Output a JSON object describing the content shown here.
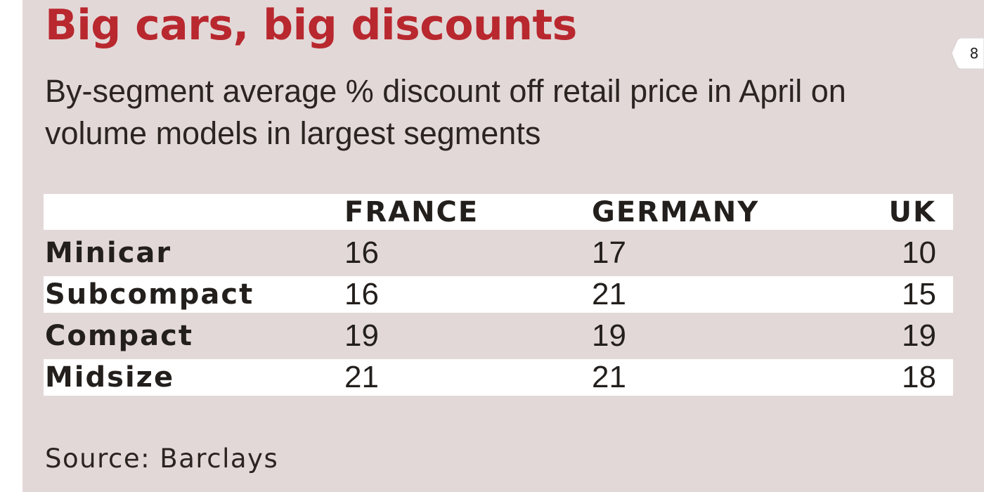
{
  "title": "Big cars, big discounts",
  "subtitle": "By-segment average % discount off retail price in April on volume models in largest segments",
  "source": "Source: Barclays",
  "page_number": "8",
  "colors": {
    "title": "#b8282e",
    "background": "#e3d8d8",
    "row_highlight": "#ffffff",
    "text": "#231f1c"
  },
  "chart_data": {
    "type": "table",
    "title": "Big cars, big discounts",
    "subtitle": "By-segment average % discount off retail price in April on volume models in largest segments",
    "columns": [
      "FRANCE",
      "GERMANY",
      "UK"
    ],
    "rows": [
      {
        "label": "Minicar",
        "values": [
          "16",
          "17",
          "10"
        ]
      },
      {
        "label": "Subcompact",
        "values": [
          "16",
          "21",
          "15"
        ]
      },
      {
        "label": "Compact",
        "values": [
          "19",
          "19",
          "19"
        ]
      },
      {
        "label": "Midsize",
        "values": [
          "21",
          "21",
          "18"
        ]
      }
    ],
    "source": "Source: Barclays"
  }
}
